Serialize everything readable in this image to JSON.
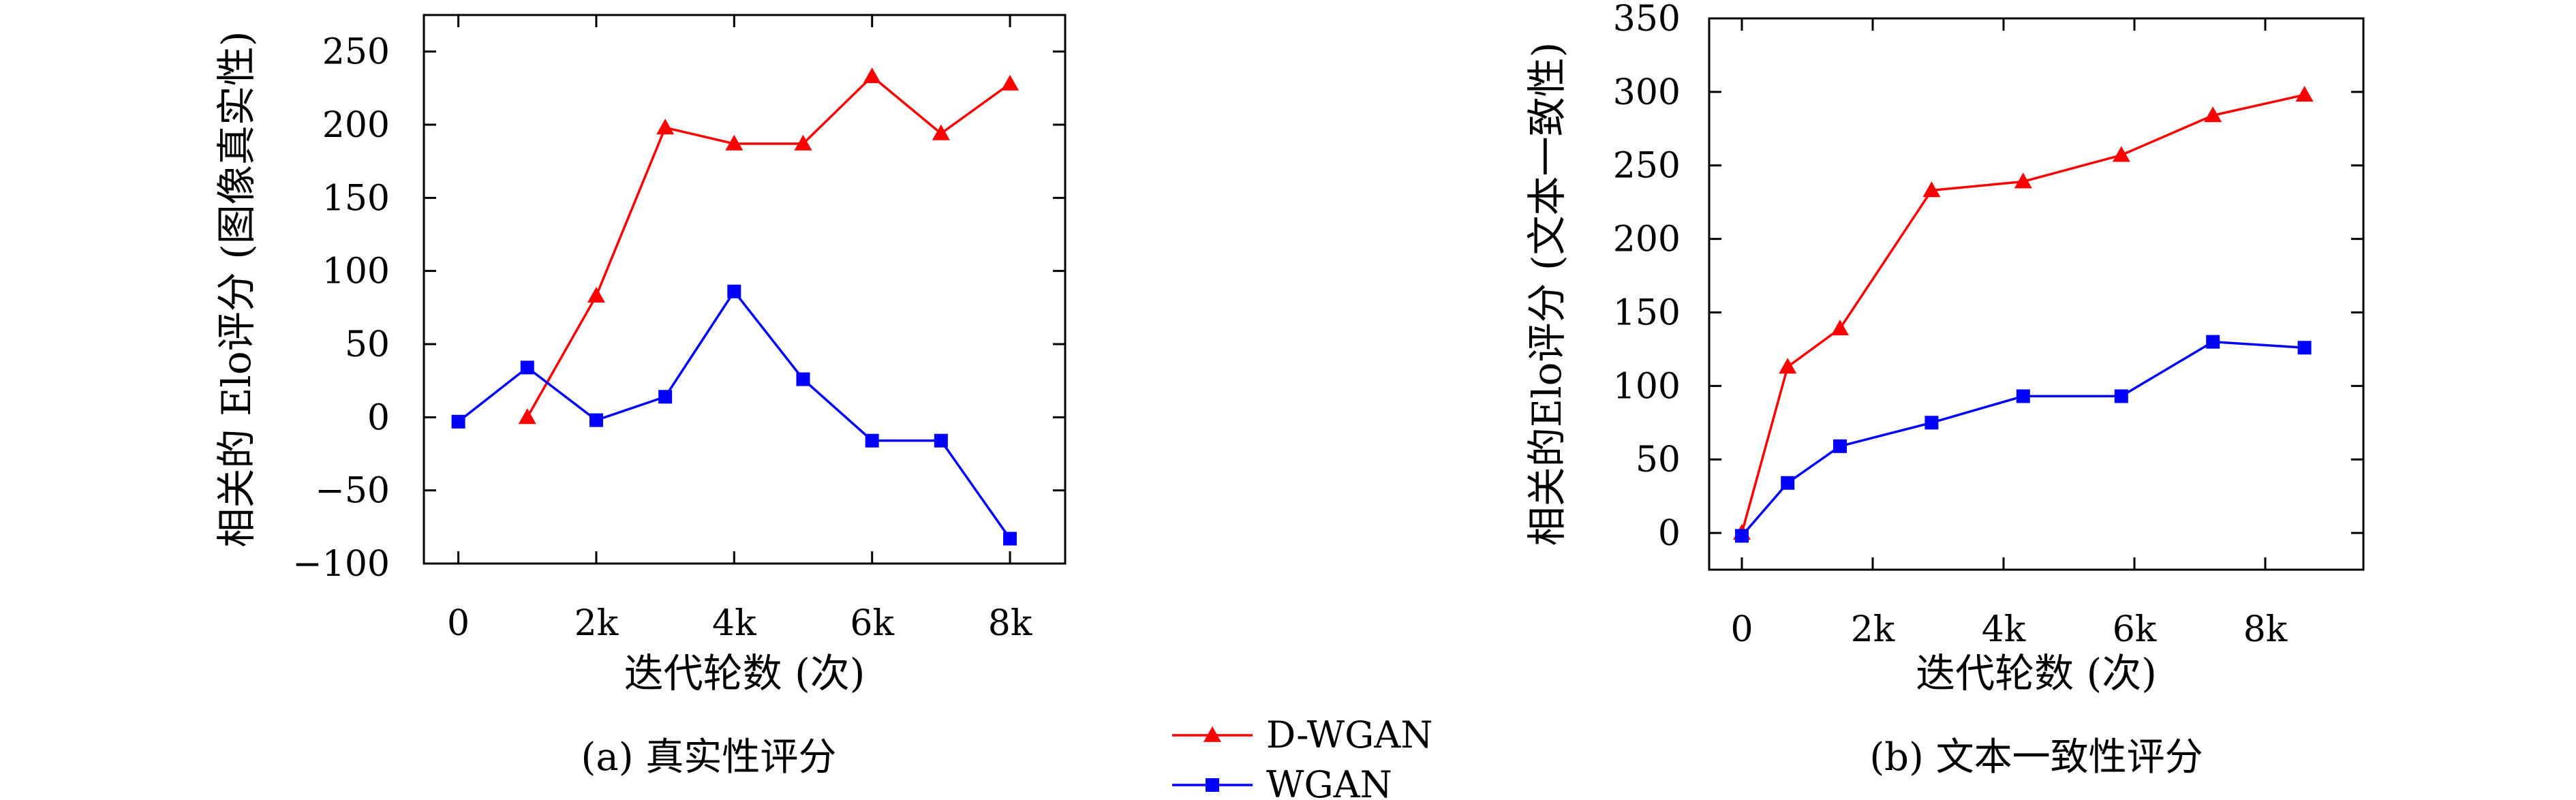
{
  "chart_data": [
    {
      "type": "line",
      "caption": "(a) 真实性评分",
      "xlabel": "迭代轮数 (次)",
      "ylabel": "相关的 Elo评分 (图像真实性)",
      "xticks": [
        "0",
        "2k",
        "4k",
        "6k",
        "8k"
      ],
      "xtick_values": [
        0,
        2000,
        4000,
        6000,
        8000
      ],
      "yticks": [
        "−100",
        "−50",
        "0",
        "50",
        "100",
        "150",
        "200",
        "250"
      ],
      "ytick_values": [
        -100,
        -50,
        0,
        50,
        100,
        150,
        200,
        250
      ],
      "xlim": [
        -500,
        8800
      ],
      "ylim": [
        -100,
        275
      ],
      "grid": false,
      "series": [
        {
          "name": "D-WGAN",
          "color": "#ff0000",
          "marker": "triangle",
          "x": [
            1000,
            2000,
            3000,
            4000,
            5000,
            6000,
            7000,
            8000
          ],
          "y": [
            0,
            83,
            198,
            187,
            187,
            233,
            194,
            228
          ]
        },
        {
          "name": "WGAN",
          "color": "#0000ff",
          "marker": "square",
          "x": [
            0,
            1000,
            2000,
            3000,
            4000,
            5000,
            6000,
            7000,
            8000
          ],
          "y": [
            -3,
            34,
            -2,
            14,
            86,
            26,
            -16,
            -16,
            -83
          ]
        }
      ]
    },
    {
      "type": "line",
      "caption": "(b) 文本一致性评分",
      "xlabel": "迭代轮数 (次)",
      "ylabel": "相关的Elo评分 (文本一致性)",
      "xticks": [
        "0",
        "2k",
        "4k",
        "6k",
        "8k"
      ],
      "xtick_values": [
        0,
        2000,
        4000,
        6000,
        8000
      ],
      "yticks": [
        "0",
        "50",
        "100",
        "150",
        "200",
        "250",
        "300",
        "350"
      ],
      "ytick_values": [
        0,
        50,
        100,
        150,
        200,
        250,
        300,
        350
      ],
      "xlim": [
        -500,
        9500
      ],
      "ylim": [
        -25,
        350
      ],
      "grid": false,
      "series": [
        {
          "name": "D-WGAN",
          "color": "#ff0000",
          "marker": "triangle",
          "x": [
            0,
            700,
            1500,
            2900,
            4300,
            5800,
            7200,
            8600
          ],
          "y": [
            0,
            113,
            139,
            233,
            239,
            257,
            284,
            298
          ]
        },
        {
          "name": "WGAN",
          "color": "#0000ff",
          "marker": "square",
          "x": [
            0,
            700,
            1500,
            2900,
            4300,
            5800,
            7200,
            8600
          ],
          "y": [
            -2,
            34,
            59,
            75,
            93,
            93,
            130,
            126
          ]
        }
      ]
    }
  ],
  "legend": {
    "placement": "bottom-center",
    "entries": [
      {
        "label": "D-WGAN",
        "color": "#ff0000",
        "marker": "triangle"
      },
      {
        "label": "WGAN",
        "color": "#0000ff",
        "marker": "square"
      }
    ]
  }
}
